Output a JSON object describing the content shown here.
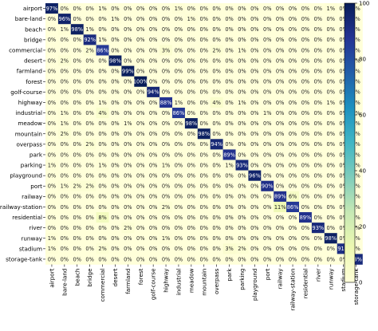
{
  "chart_data": {
    "type": "heatmap",
    "title": "",
    "xlabel": "",
    "ylabel": "",
    "value_suffix": "%",
    "categories": [
      "airport",
      "bare-land",
      "beach",
      "bridge",
      "commercial",
      "desert",
      "farmland",
      "forest",
      "golf-course",
      "highway",
      "industrial",
      "meadow",
      "mountain",
      "overpass",
      "park",
      "parking",
      "playground",
      "port",
      "railway",
      "railway-station",
      "residential",
      "river",
      "runway",
      "stadium",
      "storage-tank"
    ],
    "values": [
      [
        97,
        0,
        0,
        0,
        1,
        0,
        0,
        0,
        0,
        0,
        1,
        0,
        0,
        0,
        0,
        0,
        0,
        0,
        0,
        0,
        0,
        0,
        1,
        0,
        0
      ],
      [
        0,
        96,
        0,
        0,
        0,
        1,
        0,
        0,
        0,
        0,
        0,
        1,
        0,
        0,
        0,
        0,
        0,
        0,
        0,
        0,
        0,
        0,
        0,
        0,
        0
      ],
      [
        0,
        1,
        98,
        1,
        0,
        0,
        0,
        0,
        0,
        0,
        0,
        0,
        0,
        0,
        0,
        0,
        0,
        0,
        0,
        0,
        0,
        0,
        0,
        0,
        0
      ],
      [
        0,
        0,
        0,
        92,
        1,
        0,
        0,
        0,
        0,
        0,
        0,
        0,
        0,
        0,
        0,
        0,
        0,
        0,
        0,
        0,
        0,
        0,
        0,
        0,
        0
      ],
      [
        0,
        0,
        0,
        2,
        86,
        0,
        0,
        0,
        0,
        3,
        0,
        0,
        0,
        2,
        0,
        1,
        0,
        0,
        0,
        0,
        0,
        0,
        0,
        0,
        0
      ],
      [
        0,
        2,
        0,
        0,
        0,
        98,
        0,
        0,
        0,
        0,
        0,
        0,
        0,
        0,
        0,
        0,
        0,
        0,
        0,
        0,
        0,
        0,
        0,
        0,
        0
      ],
      [
        0,
        0,
        0,
        0,
        0,
        0,
        99,
        0,
        0,
        0,
        0,
        0,
        0,
        0,
        0,
        0,
        0,
        0,
        0,
        0,
        0,
        0,
        0,
        0,
        0
      ],
      [
        0,
        0,
        0,
        0,
        0,
        0,
        0,
        100,
        0,
        0,
        0,
        0,
        0,
        0,
        0,
        0,
        0,
        0,
        0,
        0,
        0,
        0,
        0,
        0,
        0
      ],
      [
        0,
        0,
        0,
        0,
        0,
        0,
        0,
        0,
        94,
        0,
        0,
        0,
        0,
        0,
        0,
        0,
        0,
        0,
        0,
        0,
        0,
        0,
        0,
        0,
        0
      ],
      [
        0,
        0,
        0,
        0,
        1,
        0,
        0,
        0,
        0,
        88,
        1,
        0,
        0,
        4,
        0,
        1,
        0,
        0,
        0,
        0,
        0,
        0,
        1,
        0,
        0
      ],
      [
        0,
        1,
        0,
        0,
        4,
        0,
        0,
        0,
        0,
        0,
        86,
        0,
        0,
        0,
        0,
        0,
        0,
        1,
        0,
        0,
        0,
        0,
        0,
        0,
        0
      ],
      [
        0,
        1,
        0,
        0,
        0,
        0,
        1,
        0,
        0,
        0,
        0,
        98,
        0,
        0,
        0,
        0,
        0,
        0,
        0,
        0,
        0,
        0,
        0,
        0,
        0
      ],
      [
        0,
        2,
        0,
        0,
        0,
        0,
        0,
        0,
        0,
        0,
        0,
        0,
        98,
        0,
        0,
        0,
        0,
        0,
        0,
        0,
        0,
        0,
        0,
        0,
        0
      ],
      [
        0,
        0,
        0,
        2,
        0,
        0,
        0,
        0,
        0,
        0,
        0,
        0,
        0,
        94,
        0,
        0,
        0,
        0,
        0,
        0,
        0,
        0,
        0,
        0,
        0
      ],
      [
        0,
        0,
        0,
        0,
        0,
        0,
        0,
        0,
        0,
        0,
        0,
        0,
        0,
        0,
        89,
        0,
        0,
        0,
        0,
        0,
        0,
        0,
        0,
        0,
        0
      ],
      [
        1,
        0,
        0,
        0,
        1,
        0,
        0,
        0,
        0,
        1,
        0,
        0,
        0,
        0,
        1,
        93,
        0,
        0,
        0,
        0,
        0,
        0,
        0,
        0,
        0
      ],
      [
        0,
        0,
        0,
        0,
        0,
        0,
        0,
        0,
        0,
        0,
        0,
        0,
        0,
        0,
        0,
        0,
        96,
        0,
        0,
        0,
        0,
        0,
        0,
        0,
        0
      ],
      [
        0,
        1,
        2,
        2,
        0,
        0,
        0,
        0,
        0,
        0,
        0,
        0,
        0,
        0,
        0,
        0,
        0,
        90,
        0,
        0,
        0,
        0,
        0,
        0,
        0
      ],
      [
        0,
        0,
        0,
        0,
        0,
        0,
        0,
        0,
        0,
        0,
        0,
        0,
        0,
        0,
        0,
        0,
        0,
        0,
        89,
        6,
        0,
        0,
        0,
        0,
        0
      ],
      [
        0,
        0,
        0,
        0,
        0,
        0,
        0,
        0,
        0,
        2,
        0,
        0,
        0,
        0,
        0,
        0,
        0,
        0,
        11,
        86,
        0,
        0,
        0,
        0,
        0
      ],
      [
        0,
        0,
        0,
        0,
        8,
        0,
        0,
        0,
        0,
        0,
        0,
        0,
        0,
        0,
        0,
        0,
        0,
        0,
        0,
        0,
        89,
        0,
        0,
        0,
        0
      ],
      [
        0,
        0,
        0,
        0,
        0,
        0,
        2,
        0,
        0,
        0,
        0,
        0,
        0,
        0,
        0,
        0,
        0,
        0,
        0,
        0,
        0,
        93,
        0,
        0,
        0
      ],
      [
        1,
        0,
        0,
        0,
        0,
        0,
        0,
        0,
        0,
        1,
        0,
        0,
        0,
        0,
        0,
        0,
        0,
        0,
        0,
        0,
        0,
        0,
        98,
        0,
        0
      ],
      [
        1,
        0,
        0,
        0,
        2,
        0,
        0,
        0,
        0,
        0,
        0,
        0,
        0,
        0,
        3,
        2,
        0,
        0,
        0,
        0,
        0,
        0,
        0,
        91,
        0
      ],
      [
        0,
        0,
        0,
        0,
        0,
        0,
        0,
        0,
        0,
        0,
        0,
        0,
        0,
        0,
        0,
        0,
        0,
        0,
        0,
        0,
        0,
        0,
        0,
        0,
        93
      ]
    ],
    "colorbar": {
      "ticks": [
        0,
        20,
        40,
        60,
        80,
        100
      ],
      "range": [
        0,
        100
      ],
      "colormap": "YlGnBu",
      "stops": [
        "#ffffd9",
        "#edf8b1",
        "#c7e9b4",
        "#7fcdbb",
        "#41b6c4",
        "#1d91c0",
        "#225ea8",
        "#253494",
        "#081d58"
      ]
    },
    "grid": false
  }
}
